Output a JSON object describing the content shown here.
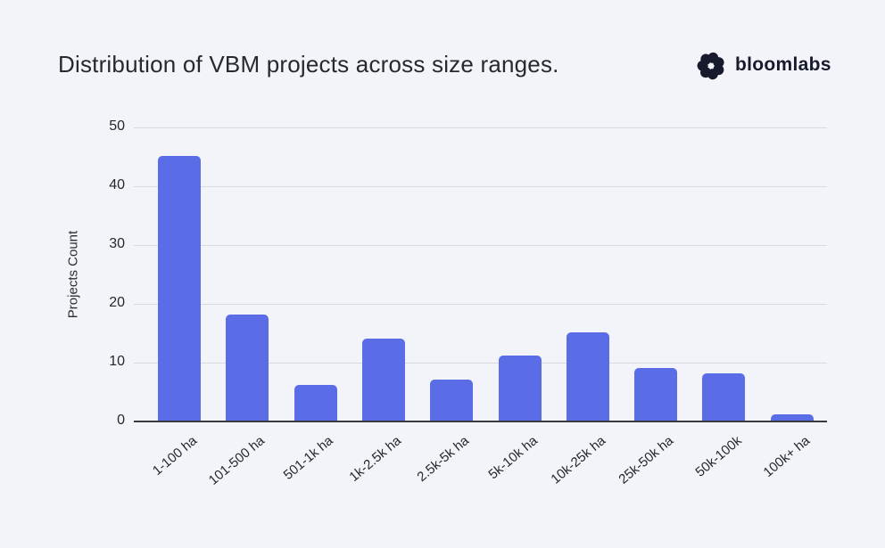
{
  "page": {
    "background_color": "#f3f4f9"
  },
  "header": {
    "title": "Distribution of VBM projects across size ranges.",
    "brand": {
      "name": "bloomlabs",
      "icon": "pinwheel-flower-icon",
      "icon_color": "#171a2c"
    }
  },
  "chart_data": {
    "type": "bar",
    "title": "Distribution of VBM projects across size ranges.",
    "categories": [
      "1-100 ha",
      "101-500 ha",
      "501-1k ha",
      "1k-2.5k ha",
      "2.5k-5k ha",
      "5k-10k ha",
      "10k-25k ha",
      "25k-50k ha",
      "50k-100k",
      "100k+ ha"
    ],
    "values": [
      45,
      18,
      6,
      14,
      7,
      11,
      15,
      9,
      8,
      1
    ],
    "xlabel": "",
    "ylabel": "Projects Count",
    "ylim": [
      0,
      50
    ],
    "yticks": [
      0,
      10,
      20,
      30,
      40,
      50
    ],
    "grid": "horizontal-only",
    "legend": "none",
    "bar_color": "#5a6de6",
    "gridline_color": "#d9dade",
    "zero_line_color": "#3a3a3c",
    "x_label_rotation_deg": -40
  }
}
